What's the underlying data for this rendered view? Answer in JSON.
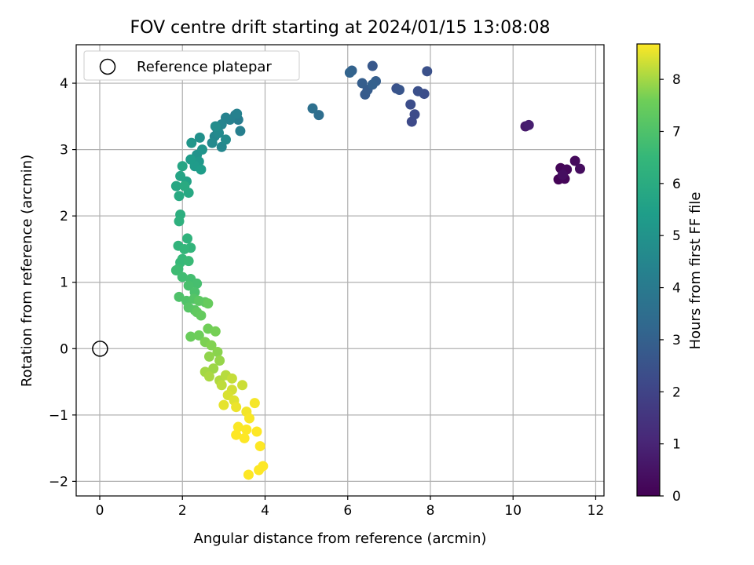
{
  "chart_data": {
    "type": "scatter",
    "title": "FOV centre drift starting at 2024/01/15 13:08:08",
    "xlabel": "Angular distance from reference (arcmin)",
    "ylabel": "Rotation from reference (arcmin)",
    "xlim": [
      -0.57,
      12.2
    ],
    "ylim": [
      -2.22,
      4.58
    ],
    "xticks": [
      "0",
      "2",
      "4",
      "6",
      "8",
      "10",
      "12"
    ],
    "yticks": [
      "−2",
      "−1",
      "0",
      "1",
      "2",
      "3",
      "4"
    ],
    "grid": true,
    "legend": {
      "placement": "top-left",
      "entries": [
        "Reference platepar"
      ]
    },
    "reference_point": {
      "x": 0,
      "y": 0,
      "label": "Reference platepar"
    },
    "colorbar": {
      "label": "Hours from first FF file",
      "range": [
        0,
        8.68
      ],
      "ticks": [
        "0",
        "1",
        "2",
        "3",
        "4",
        "5",
        "6",
        "7",
        "8"
      ],
      "colormap": "viridis"
    },
    "series": [
      {
        "points": [
          [
            11.1,
            2.55,
            0.05
          ],
          [
            11.15,
            2.72,
            0.1
          ],
          [
            11.25,
            2.56,
            0.15
          ],
          [
            11.3,
            2.7,
            0.2
          ],
          [
            11.5,
            2.83,
            0.25
          ],
          [
            11.62,
            2.71,
            0.3
          ],
          [
            11.2,
            2.62,
            0.35
          ],
          [
            10.3,
            3.35,
            0.7
          ],
          [
            10.38,
            3.37,
            0.8
          ],
          [
            7.55,
            3.42,
            2.2
          ],
          [
            7.62,
            3.53,
            2.25
          ],
          [
            7.52,
            3.68,
            2.3
          ],
          [
            7.85,
            3.84,
            2.35
          ],
          [
            7.7,
            3.88,
            2.4
          ],
          [
            7.92,
            4.18,
            2.45
          ],
          [
            7.18,
            3.92,
            2.5
          ],
          [
            7.25,
            3.9,
            2.6
          ],
          [
            6.6,
            4.26,
            2.7
          ],
          [
            6.42,
            3.83,
            2.8
          ],
          [
            6.48,
            3.9,
            2.85
          ],
          [
            6.35,
            4.0,
            2.9
          ],
          [
            6.68,
            4.03,
            2.95
          ],
          [
            6.6,
            3.98,
            3.0
          ],
          [
            6.1,
            4.19,
            3.05
          ],
          [
            6.05,
            4.16,
            3.1
          ],
          [
            5.3,
            3.52,
            3.5
          ],
          [
            5.15,
            3.62,
            3.6
          ],
          [
            3.28,
            3.52,
            4.0
          ],
          [
            3.35,
            3.45,
            4.1
          ],
          [
            3.4,
            3.28,
            4.2
          ],
          [
            3.15,
            3.45,
            4.25
          ],
          [
            3.32,
            3.54,
            4.3
          ],
          [
            3.05,
            3.48,
            4.35
          ],
          [
            2.95,
            3.38,
            4.4
          ],
          [
            2.85,
            3.3,
            4.45
          ],
          [
            2.78,
            3.2,
            4.5
          ],
          [
            2.95,
            3.04,
            4.55
          ],
          [
            2.72,
            3.1,
            4.6
          ],
          [
            2.88,
            3.25,
            4.65
          ],
          [
            3.05,
            3.15,
            4.7
          ],
          [
            2.8,
            3.35,
            4.75
          ],
          [
            2.42,
            3.18,
            4.9
          ],
          [
            2.35,
            2.92,
            5.0
          ],
          [
            2.48,
            3.0,
            5.05
          ],
          [
            2.22,
            3.1,
            5.1
          ],
          [
            2.4,
            2.82,
            5.2
          ],
          [
            2.3,
            2.75,
            5.3
          ],
          [
            2.2,
            2.85,
            5.35
          ],
          [
            2.45,
            2.7,
            5.4
          ],
          [
            2.1,
            2.52,
            5.6
          ],
          [
            1.95,
            2.6,
            5.7
          ],
          [
            2.0,
            2.75,
            5.75
          ],
          [
            1.85,
            2.45,
            5.8
          ],
          [
            2.15,
            2.35,
            5.85
          ],
          [
            1.92,
            2.3,
            5.9
          ],
          [
            2.05,
            2.45,
            5.95
          ],
          [
            1.95,
            2.02,
            6.1
          ],
          [
            1.92,
            1.92,
            6.2
          ],
          [
            2.12,
            1.66,
            6.3
          ],
          [
            1.9,
            1.55,
            6.35
          ],
          [
            2.2,
            1.52,
            6.4
          ],
          [
            2.05,
            1.5,
            6.45
          ],
          [
            2.0,
            1.35,
            6.5
          ],
          [
            1.95,
            1.3,
            6.55
          ],
          [
            2.15,
            1.32,
            6.6
          ],
          [
            1.9,
            1.2,
            6.65
          ],
          [
            1.85,
            1.18,
            6.7
          ],
          [
            2.0,
            1.08,
            6.75
          ],
          [
            2.2,
            1.05,
            6.8
          ],
          [
            2.35,
            0.98,
            6.85
          ],
          [
            2.15,
            0.95,
            6.9
          ],
          [
            2.3,
            0.85,
            6.95
          ],
          [
            1.92,
            0.78,
            7.0
          ],
          [
            2.1,
            0.72,
            7.05
          ],
          [
            2.28,
            0.75,
            7.1
          ],
          [
            2.15,
            0.62,
            7.15
          ],
          [
            2.3,
            0.58,
            7.2
          ],
          [
            2.4,
            0.72,
            7.25
          ],
          [
            2.55,
            0.7,
            7.3
          ],
          [
            2.35,
            0.55,
            7.35
          ],
          [
            2.45,
            0.5,
            7.4
          ],
          [
            2.62,
            0.68,
            7.45
          ],
          [
            2.2,
            0.18,
            7.5
          ],
          [
            2.4,
            0.2,
            7.55
          ],
          [
            2.62,
            0.3,
            7.6
          ],
          [
            2.8,
            0.26,
            7.65
          ],
          [
            2.55,
            0.1,
            7.7
          ],
          [
            2.7,
            0.05,
            7.75
          ],
          [
            2.85,
            -0.05,
            7.8
          ],
          [
            2.65,
            -0.12,
            7.85
          ],
          [
            2.9,
            -0.18,
            7.9
          ],
          [
            2.75,
            -0.3,
            7.95
          ],
          [
            2.55,
            -0.35,
            8.0
          ],
          [
            2.65,
            -0.42,
            8.05
          ],
          [
            2.9,
            -0.48,
            8.1
          ],
          [
            3.05,
            -0.4,
            8.15
          ],
          [
            2.95,
            -0.55,
            8.2
          ],
          [
            3.2,
            -0.45,
            8.25
          ],
          [
            3.45,
            -0.55,
            8.3
          ],
          [
            3.2,
            -0.62,
            8.35
          ],
          [
            3.1,
            -0.7,
            8.4
          ],
          [
            3.25,
            -0.78,
            8.45
          ],
          [
            3.0,
            -0.85,
            8.5
          ],
          [
            3.3,
            -0.88,
            8.55
          ],
          [
            3.55,
            -0.95,
            8.6
          ],
          [
            3.75,
            -0.82,
            8.62
          ],
          [
            3.62,
            -1.05,
            8.64
          ],
          [
            3.35,
            -1.18,
            8.66
          ],
          [
            3.55,
            -1.22,
            8.67
          ],
          [
            3.3,
            -1.3,
            8.68
          ],
          [
            3.5,
            -1.35,
            8.68
          ],
          [
            3.8,
            -1.25,
            8.68
          ],
          [
            3.88,
            -1.47,
            8.68
          ],
          [
            3.95,
            -1.77,
            8.68
          ],
          [
            3.85,
            -1.83,
            8.68
          ],
          [
            3.6,
            -1.9,
            8.68
          ]
        ]
      }
    ]
  }
}
